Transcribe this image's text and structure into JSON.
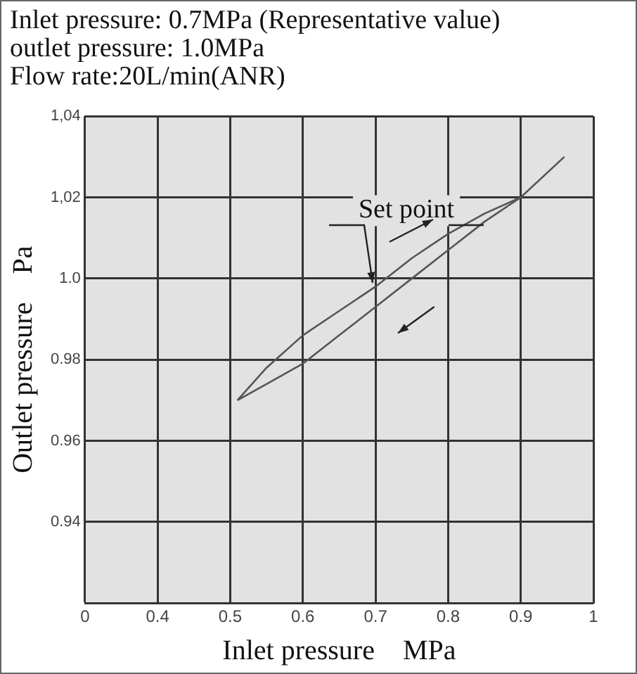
{
  "chart_data": {
    "type": "line",
    "subtitle": "Inlet pressure: 0.7MPa (Representative value)\noutlet pressure: 1.0MPa\nFlow rate:20L/min(ANR)",
    "xlabel": "Inlet pressure    MPa",
    "ylabel": "Outlet pressure    Pa",
    "series": [
      {
        "color": "#555555",
        "x": [
          0.51,
          0.55,
          0.6,
          0.65,
          0.7,
          0.75,
          0.8,
          0.85,
          0.9,
          0.96
        ],
        "values": [
          0.97,
          0.978,
          0.986,
          0.992,
          0.998,
          1.005,
          1.011,
          1.016,
          1.02,
          1.03
        ]
      },
      {
        "color": "#555555",
        "x": [
          0.51,
          0.55,
          0.6,
          0.65,
          0.7,
          0.75,
          0.8,
          0.85,
          0.9
        ],
        "values": [
          0.97,
          0.974,
          0.979,
          0.986,
          0.993,
          1.0,
          1.007,
          1.014,
          1.02
        ]
      }
    ],
    "xlim": [
      0.3,
      1
    ],
    "xticks": [
      {
        "value": 0.3,
        "label": "0"
      },
      0.4,
      0.5,
      0.6,
      0.7,
      0.8,
      0.9,
      1
    ],
    "ylim": [
      0.92,
      1.04
    ],
    "yticks": [
      {
        "value": 0.92,
        "label": null
      },
      0.94,
      0.96,
      0.98,
      {
        "value": 1.0,
        "label": "1.0"
      },
      {
        "value": 1.02,
        "label": "1,02"
      },
      {
        "value": 1.04,
        "label": "1,04"
      }
    ],
    "annotations": [
      {
        "text": "Set point",
        "x": 0.7,
        "y": 0.998
      }
    ],
    "grid": true,
    "legend": false,
    "marker": "none",
    "line_style": "solid"
  }
}
